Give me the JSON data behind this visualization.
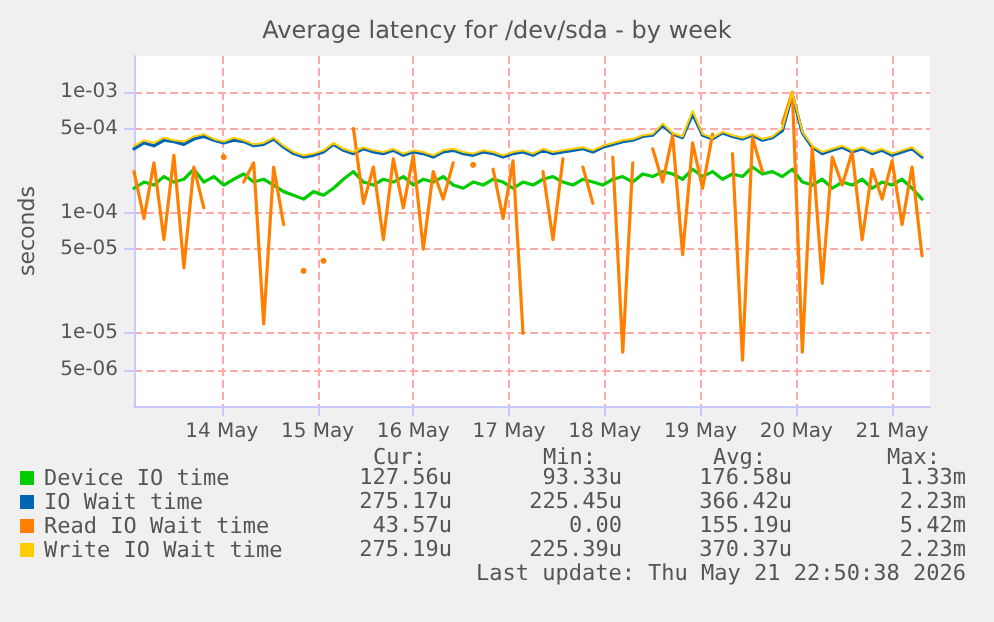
{
  "chart_data": {
    "type": "line",
    "title": "Average latency for /dev/sda - by week",
    "ylabel": "seconds",
    "x": [
      "2026-05-13T14:00",
      "2026-05-13T16:30",
      "2026-05-13T19:00",
      "2026-05-13T21:30",
      "2026-05-14T00:00",
      "2026-05-14T02:30",
      "2026-05-14T05:00",
      "2026-05-14T07:30",
      "2026-05-14T10:00",
      "2026-05-14T12:30",
      "2026-05-14T15:00",
      "2026-05-14T17:30",
      "2026-05-14T20:00",
      "2026-05-14T22:30",
      "2026-05-15T01:00",
      "2026-05-15T03:30",
      "2026-05-15T06:00",
      "2026-05-15T08:30",
      "2026-05-15T11:00",
      "2026-05-15T13:30",
      "2026-05-15T16:00",
      "2026-05-15T18:30",
      "2026-05-15T21:00",
      "2026-05-15T23:30",
      "2026-05-16T02:00",
      "2026-05-16T04:30",
      "2026-05-16T07:00",
      "2026-05-16T09:30",
      "2026-05-16T12:00",
      "2026-05-16T14:30",
      "2026-05-16T17:00",
      "2026-05-16T19:30",
      "2026-05-16T22:00",
      "2026-05-17T00:30",
      "2026-05-17T03:00",
      "2026-05-17T05:30",
      "2026-05-17T08:00",
      "2026-05-17T10:30",
      "2026-05-17T13:00",
      "2026-05-17T15:30",
      "2026-05-17T18:00",
      "2026-05-17T20:30",
      "2026-05-17T23:00",
      "2026-05-18T01:30",
      "2026-05-18T04:00",
      "2026-05-18T06:30",
      "2026-05-18T09:00",
      "2026-05-18T11:30",
      "2026-05-18T14:00",
      "2026-05-18T16:30",
      "2026-05-18T19:00",
      "2026-05-18T21:30",
      "2026-05-19T00:00",
      "2026-05-19T02:30",
      "2026-05-19T05:00",
      "2026-05-19T07:30",
      "2026-05-19T10:00",
      "2026-05-19T12:30",
      "2026-05-19T15:00",
      "2026-05-19T17:30",
      "2026-05-19T20:00",
      "2026-05-19T22:30",
      "2026-05-20T01:00",
      "2026-05-20T03:30",
      "2026-05-20T06:00",
      "2026-05-20T08:30",
      "2026-05-20T11:00",
      "2026-05-20T13:30",
      "2026-05-20T16:00",
      "2026-05-20T18:30",
      "2026-05-20T21:00",
      "2026-05-20T23:30",
      "2026-05-21T02:00",
      "2026-05-21T04:30",
      "2026-05-21T07:00",
      "2026-05-21T09:30",
      "2026-05-21T12:00",
      "2026-05-21T14:30",
      "2026-05-21T17:00",
      "2026-05-21T19:30"
    ],
    "series": [
      {
        "name": "Device IO time",
        "color": "#00cc00",
        "values": [
          0.00016,
          0.00018,
          0.00017,
          0.0002,
          0.00018,
          0.00019,
          0.00023,
          0.00018,
          0.0002,
          0.00017,
          0.00019,
          0.00021,
          0.00018,
          0.00019,
          0.00017,
          0.00015,
          0.00014,
          0.00013,
          0.00015,
          0.00014,
          0.00016,
          0.00019,
          0.00022,
          0.00018,
          0.00017,
          0.00019,
          0.00018,
          0.0002,
          0.00017,
          0.00019,
          0.00018,
          0.0002,
          0.00017,
          0.00016,
          0.00018,
          0.00017,
          0.00019,
          0.00018,
          0.00016,
          0.00018,
          0.00017,
          0.00019,
          0.0002,
          0.00018,
          0.00017,
          0.00019,
          0.00018,
          0.00017,
          0.00019,
          0.0002,
          0.00018,
          0.00021,
          0.0002,
          0.00022,
          0.00021,
          0.00019,
          0.00023,
          0.0002,
          0.00022,
          0.00019,
          0.00021,
          0.0002,
          0.00024,
          0.00021,
          0.00022,
          0.0002,
          0.00023,
          0.00018,
          0.00017,
          0.00019,
          0.00016,
          0.00018,
          0.00017,
          0.00019,
          0.00016,
          0.00018,
          0.00017,
          0.00019,
          0.00016,
          0.00013
        ]
      },
      {
        "name": "IO Wait time",
        "color": "#0066b3",
        "values": [
          0.00034,
          0.00038,
          0.00036,
          0.0004,
          0.00039,
          0.00037,
          0.00041,
          0.00043,
          0.0004,
          0.00038,
          0.0004,
          0.00039,
          0.00036,
          0.00037,
          0.00041,
          0.00035,
          0.00031,
          0.00029,
          0.0003,
          0.00032,
          0.00037,
          0.00033,
          0.00031,
          0.00034,
          0.00032,
          0.00031,
          0.00033,
          0.0003,
          0.00032,
          0.00031,
          0.00029,
          0.00032,
          0.00033,
          0.00031,
          0.0003,
          0.00032,
          0.00031,
          0.00029,
          0.00031,
          0.00032,
          0.0003,
          0.00033,
          0.00031,
          0.00032,
          0.00033,
          0.00034,
          0.00032,
          0.00035,
          0.00037,
          0.00039,
          0.0004,
          0.00043,
          0.00044,
          0.00053,
          0.00045,
          0.00042,
          0.00066,
          0.00044,
          0.00041,
          0.00046,
          0.00043,
          0.00041,
          0.00044,
          0.0004,
          0.00042,
          0.00048,
          0.00096,
          0.00046,
          0.00035,
          0.00031,
          0.00033,
          0.00035,
          0.00032,
          0.00034,
          0.00031,
          0.00033,
          0.0003,
          0.00032,
          0.00034,
          0.00029
        ]
      },
      {
        "name": "Read IO Wait time",
        "color": "#ff8000",
        "values": [
          0.00022,
          9e-05,
          0.00026,
          6e-05,
          0.0003,
          3.5e-05,
          0.00024,
          0.00011,
          null,
          0.00029,
          null,
          0.00018,
          0.00026,
          1.2e-05,
          0.00024,
          8e-05,
          null,
          3.3e-05,
          null,
          4e-05,
          null,
          null,
          0.0005,
          0.00012,
          0.00024,
          6e-05,
          0.00028,
          0.00011,
          0.0003,
          5e-05,
          0.00022,
          0.00013,
          0.00026,
          null,
          0.00025,
          null,
          0.00023,
          9e-05,
          0.00027,
          1e-05,
          null,
          0.00022,
          6e-05,
          0.00028,
          null,
          0.00024,
          0.00012,
          null,
          0.00029,
          7e-06,
          0.00026,
          null,
          0.00034,
          0.00018,
          0.00044,
          4.5e-05,
          0.00038,
          0.00016,
          0.00045,
          null,
          0.00031,
          6e-06,
          0.00042,
          0.00022,
          null,
          0.00055,
          0.001,
          7e-06,
          0.00035,
          2.6e-05,
          0.00029,
          0.00017,
          0.00032,
          6e-05,
          0.00023,
          0.00013,
          0.00027,
          8e-05,
          0.00024,
          4.4e-05
        ]
      },
      {
        "name": "Write IO Wait time",
        "color": "#ffcc00",
        "values": [
          0.00036,
          0.0004,
          0.00038,
          0.00042,
          0.0004,
          0.00039,
          0.00043,
          0.00045,
          0.00041,
          0.00039,
          0.00042,
          0.0004,
          0.00037,
          0.00038,
          0.00042,
          0.00036,
          0.00032,
          0.0003,
          0.00031,
          0.00033,
          0.00038,
          0.00034,
          0.00032,
          0.00035,
          0.00033,
          0.00032,
          0.00034,
          0.00031,
          0.00033,
          0.00032,
          0.0003,
          0.00033,
          0.00034,
          0.00032,
          0.00031,
          0.00033,
          0.00032,
          0.0003,
          0.00032,
          0.00033,
          0.00031,
          0.00034,
          0.00032,
          0.00033,
          0.00034,
          0.00035,
          0.00033,
          0.00036,
          0.00038,
          0.0004,
          0.00041,
          0.00044,
          0.00045,
          0.00055,
          0.00046,
          0.00043,
          0.0007,
          0.00045,
          0.00042,
          0.00047,
          0.00044,
          0.00042,
          0.00045,
          0.00041,
          0.00043,
          0.0005,
          0.001,
          0.00047,
          0.00036,
          0.00032,
          0.00034,
          0.00036,
          0.00033,
          0.00035,
          0.00032,
          0.00034,
          0.00031,
          0.00033,
          0.00035,
          0.0003
        ]
      }
    ],
    "log": "y",
    "ylim": [
      2.5e-06,
      0.002
    ],
    "yticks": [
      {
        "value": 5e-06,
        "label": "5e-06"
      },
      {
        "value": 1e-05,
        "label": "1e-05"
      },
      {
        "value": 5e-05,
        "label": "5e-05"
      },
      {
        "value": 0.0001,
        "label": "1e-04"
      },
      {
        "value": 0.0005,
        "label": "5e-04"
      },
      {
        "value": 0.001,
        "label": "1e-03"
      }
    ],
    "xlim": [
      "2026-05-13T14:00",
      "2026-05-21T21:30"
    ],
    "xticks": [
      {
        "value": "2026-05-14T12:00",
        "label": "14 May"
      },
      {
        "value": "2026-05-15T12:00",
        "label": "15 May"
      },
      {
        "value": "2026-05-16T12:00",
        "label": "16 May"
      },
      {
        "value": "2026-05-17T12:00",
        "label": "17 May"
      },
      {
        "value": "2026-05-18T12:00",
        "label": "18 May"
      },
      {
        "value": "2026-05-19T12:00",
        "label": "19 May"
      },
      {
        "value": "2026-05-20T12:00",
        "label": "20 May"
      },
      {
        "value": "2026-05-21T12:00",
        "label": "21 May"
      }
    ],
    "grid": true,
    "legend": "bottom left",
    "marker": "none",
    "line_style": "solid",
    "annotations": [
      "Cur:",
      "Min:",
      "Avg:",
      "Max:",
      "127.56u",
      "93.33u",
      "176.58u",
      "1.33m",
      "275.17u",
      "225.45u",
      "366.42u",
      "2.23m",
      "43.57u",
      "0.00",
      "155.19u",
      "5.42m",
      "275.19u",
      "225.39u",
      "370.37u",
      "2.23m",
      "Last update: Thu May 21 22:50:38 2026"
    ]
  }
}
